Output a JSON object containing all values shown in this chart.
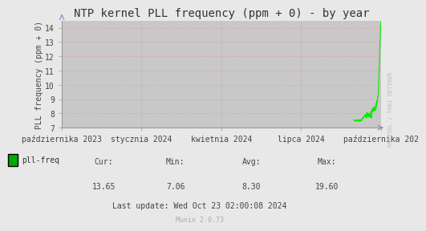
{
  "title": "NTP kernel PLL frequency (ppm + 0) - by year",
  "ylabel": "PLL frequency (ppm + 0)",
  "bg_color": "#e8e8e8",
  "plot_bg_color": "#c8c8c8",
  "grid_color": "#ff8080",
  "line_color": "#00ee00",
  "ylim": [
    7,
    14.5
  ],
  "yticks": [
    7,
    8,
    9,
    10,
    11,
    12,
    13,
    14
  ],
  "x_labels": [
    "października 2023",
    "stycznia 2024",
    "kwietnia 2024",
    "lipca 2024",
    "października 202"
  ],
  "legend_label": "pll-freq",
  "legend_color": "#00aa00",
  "cur": "13.65",
  "min": "7.06",
  "avg": "8.30",
  "max": "19.60",
  "last_update": "Last update: Wed Oct 23 02:00:08 2024",
  "munin_label": "Munin 2.0.73",
  "watermark": "RRDTOOL / TOBI OETIKER",
  "title_fontsize": 10,
  "axis_fontsize": 7,
  "legend_fontsize": 7,
  "watermark_fontsize": 5
}
